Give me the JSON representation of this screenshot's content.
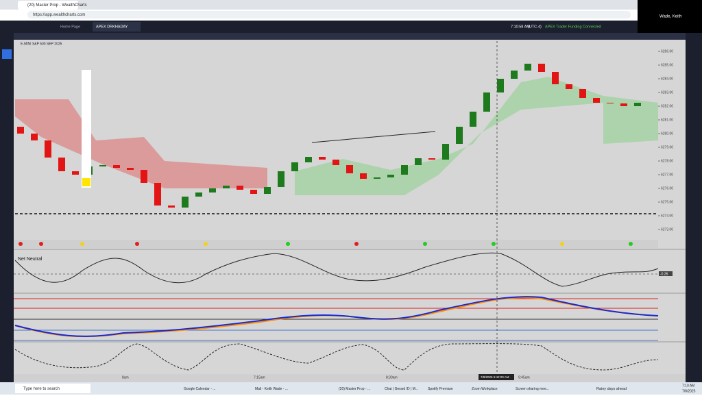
{
  "browser": {
    "tab_title": "(20) Master Prop - WealthCharts",
    "url": "https://app.wealthcharts.com"
  },
  "app_bar": {
    "tabs": [
      "Home Page",
      "APEX DRKHADAY"
    ],
    "clock": "7:10:58 AM",
    "timezone": "(UTC-4)",
    "account": "APEX Trader Funding",
    "status": "Connected"
  },
  "user": "Wade, Keith",
  "symbol": "E-MINI S&P 500 SEP 2025",
  "price_chart": {
    "type": "candlestick",
    "opens": [
      6280.5,
      6280.0,
      6279.5,
      6278.25,
      6277.25,
      6277.0,
      6277.6,
      6277.7,
      6277.5,
      6277.35,
      6276.4,
      6274.75,
      6274.6,
      6275.4,
      6275.7,
      6276.0,
      6276.2,
      6275.9,
      6275.6,
      6276.1,
      6277.25,
      6277.9,
      6278.3,
      6278.1,
      6277.7,
      6277.1,
      6276.7,
      6276.8,
      6277.0,
      6277.7,
      6278.2,
      6278.1,
      6279.25,
      6280.5,
      6281.6,
      6283.0,
      6284.0,
      6284.6,
      6285.1,
      6284.5,
      6283.6,
      6283.25,
      6282.6,
      6282.25,
      6282.2,
      6282.0
    ],
    "closes": [
      6280.0,
      6279.5,
      6278.25,
      6277.25,
      6277.0,
      6277.6,
      6277.7,
      6277.5,
      6277.35,
      6276.4,
      6274.75,
      6274.6,
      6275.4,
      6275.7,
      6276.0,
      6276.2,
      6275.9,
      6275.6,
      6276.1,
      6277.25,
      6277.9,
      6278.3,
      6278.1,
      6277.7,
      6277.1,
      6276.7,
      6276.8,
      6277.0,
      6277.7,
      6278.2,
      6278.1,
      6279.25,
      6280.5,
      6281.6,
      6283.0,
      6284.0,
      6284.6,
      6285.1,
      6284.5,
      6283.6,
      6283.25,
      6282.6,
      6282.25,
      6282.2,
      6282.0,
      6282.25
    ],
    "ylim": [
      6272.5,
      6286.5
    ],
    "yticks": [
      {
        "value": 6273,
        "label": "6273.00"
      },
      {
        "value": 6274,
        "label": "6274.00"
      },
      {
        "value": 6275,
        "label": "6275.00"
      },
      {
        "value": 6276,
        "label": "6276.00"
      },
      {
        "value": 6277,
        "label": "6277.00"
      },
      {
        "value": 6278,
        "label": "6278.00"
      },
      {
        "value": 6279,
        "label": "6279.00"
      },
      {
        "value": 6280,
        "label": "6280.00"
      },
      {
        "value": 6281,
        "label": "6281.00"
      },
      {
        "value": 6282,
        "label": "6282.00"
      },
      {
        "value": 6283,
        "label": "6283.00"
      },
      {
        "value": 6284,
        "label": "6284.00"
      },
      {
        "value": 6285,
        "label": "6285.00"
      },
      {
        "value": 6286,
        "label": "6286.00"
      }
    ],
    "dashed_level": 6274.15,
    "up_color": "#1d7a1d",
    "down_color": "#e31414"
  },
  "time_axis": [
    "8am",
    "7:15am",
    "8:30am",
    "7/8/2025 6:42:00 AM",
    "9:45am"
  ],
  "indicator": {
    "name": "Net Neutral",
    "value": "-0.26"
  },
  "taskbar": {
    "search": "Type here to search",
    "items": [
      "Google Calendar - ...",
      "Mail - Keith Wade - ...",
      "(20) Master Prop - ...",
      "Chat | Gerard ID | M...",
      "Spotify Premium",
      "Zoom Workplace",
      "Screen sharing mee..."
    ],
    "weather": "Rainy days ahead",
    "time": "7:10 AM",
    "date": "7/8/2025"
  }
}
